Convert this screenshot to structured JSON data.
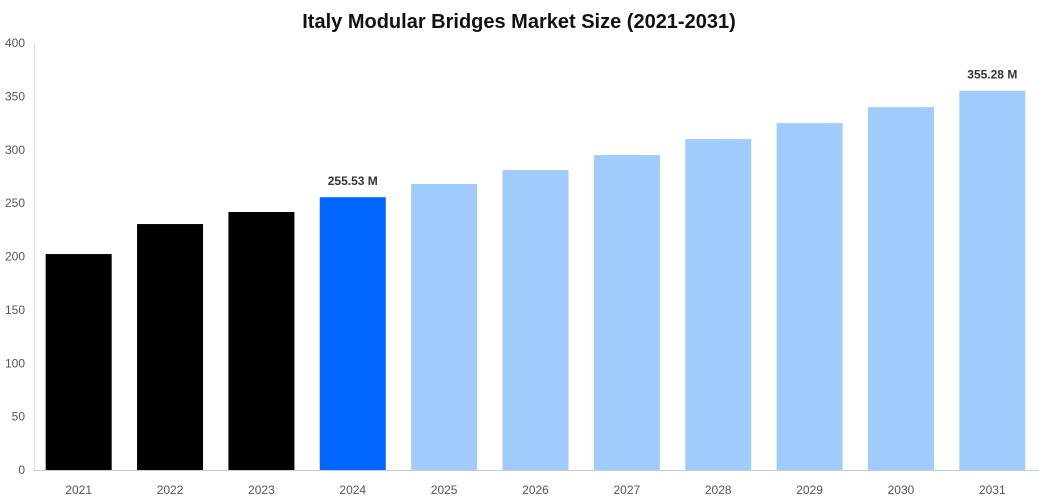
{
  "chart_data": {
    "type": "bar",
    "title": "Italy Modular Bridges Market Size (2021-2031)",
    "xlabel": "",
    "ylabel": "",
    "ylim": [
      0,
      400
    ],
    "yticks": [
      0,
      50,
      100,
      150,
      200,
      250,
      300,
      350,
      400
    ],
    "grid": false,
    "categories": [
      "2021",
      "2022",
      "2023",
      "2024",
      "2025",
      "2026",
      "2027",
      "2028",
      "2029",
      "2030",
      "2031"
    ],
    "values": [
      202.3,
      230.4,
      241.7,
      255.53,
      267.9,
      281.0,
      295.0,
      310.0,
      325.0,
      340.0,
      355.28
    ],
    "colors": [
      "#000000",
      "#000000",
      "#000000",
      "#0066ff",
      "#9fcbfd",
      "#9fcbfd",
      "#9fcbfd",
      "#9fcbfd",
      "#9fcbfd",
      "#9fcbfd",
      "#9fcbfd"
    ],
    "data_labels": [
      {
        "index": 3,
        "text": "255.53 M"
      },
      {
        "index": 10,
        "text": "355.28 M"
      }
    ]
  }
}
